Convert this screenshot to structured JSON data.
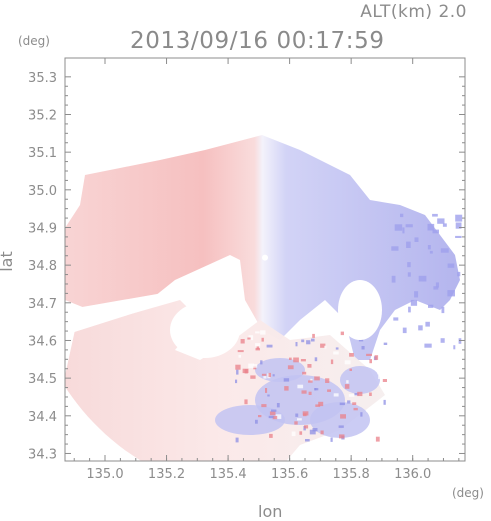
{
  "header": {
    "altitude_label": "ALT(km) 2.0",
    "timestamp": "2013/09/16 00:17:59"
  },
  "chart_data": {
    "type": "heatmap",
    "title": "2013/09/16 00:17:59",
    "subtitle": "ALT(km) 2.0",
    "xlabel": "lon",
    "ylabel": "lat",
    "x_unit": "(deg)",
    "y_unit": "(deg)",
    "xlim": [
      134.87,
      136.17
    ],
    "ylim": [
      34.28,
      35.35
    ],
    "x_ticks": [
      135.0,
      135.2,
      135.4,
      135.6,
      135.8,
      136.0
    ],
    "x_tick_labels": [
      "135.0",
      "135.2",
      "135.4",
      "135.6",
      "135.8",
      "136.0"
    ],
    "y_ticks": [
      34.3,
      34.4,
      34.5,
      34.6,
      34.7,
      34.8,
      34.9,
      35.0,
      35.1,
      35.2,
      35.3
    ],
    "y_tick_labels": [
      "34.3",
      "34.4",
      "34.5",
      "34.6",
      "34.7",
      "34.8",
      "34.9",
      "35.0",
      "35.1",
      "35.2",
      "35.3"
    ],
    "grid": false,
    "radar_center": [
      135.52,
      34.82
    ],
    "colors": {
      "receding": "#f4b4b4",
      "approaching": "#a8a8ee",
      "axis": "#8c8c8c"
    }
  }
}
